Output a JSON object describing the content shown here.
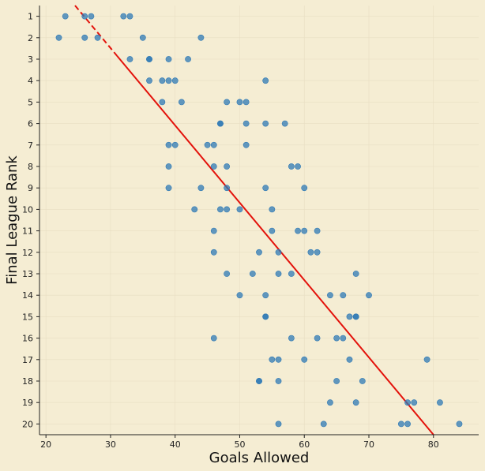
{
  "chart_data": {
    "type": "scatter",
    "title": "",
    "xlabel": "Goals Allowed",
    "ylabel": "Final League Rank",
    "xlim": [
      19,
      87
    ],
    "ylim": [
      20.5,
      0.5
    ],
    "y_inverted": true,
    "xticks": [
      20,
      30,
      40,
      50,
      60,
      70,
      80
    ],
    "yticks": [
      1,
      2,
      3,
      4,
      5,
      6,
      7,
      8,
      9,
      10,
      11,
      12,
      13,
      14,
      15,
      16,
      17,
      18,
      19,
      20
    ],
    "grid": true,
    "colors": {
      "background": "#f5edd3",
      "point": "#2f79b5",
      "trend": "#e3120b",
      "grid": "#e8dec3"
    },
    "series": [
      {
        "kind": "points",
        "x": [
          23,
          26,
          27,
          32,
          33,
          22,
          26,
          28,
          35,
          44,
          33,
          36,
          36,
          39,
          42,
          36,
          38,
          39,
          40,
          54,
          38,
          41,
          48,
          50,
          51,
          47,
          47,
          51,
          54,
          57,
          39,
          40,
          45,
          46,
          51,
          39,
          46,
          48,
          58,
          59,
          39,
          44,
          48,
          54,
          60,
          43,
          47,
          48,
          50,
          55,
          46,
          55,
          59,
          60,
          62,
          46,
          53,
          56,
          61,
          62,
          48,
          52,
          56,
          58,
          68,
          50,
          54,
          64,
          66,
          70,
          54,
          54,
          67,
          68,
          68,
          46,
          58,
          62,
          65,
          66,
          55,
          56,
          60,
          67,
          79,
          53,
          53,
          56,
          65,
          69,
          64,
          68,
          76,
          77,
          81,
          56,
          63,
          75,
          76,
          84
        ],
        "y": [
          1,
          1,
          1,
          1,
          1,
          2,
          2,
          2,
          2,
          2,
          3,
          3,
          3,
          3,
          3,
          4,
          4,
          4,
          4,
          4,
          5,
          5,
          5,
          5,
          5,
          6,
          6,
          6,
          6,
          6,
          7,
          7,
          7,
          7,
          7,
          8,
          8,
          8,
          8,
          8,
          9,
          9,
          9,
          9,
          9,
          10,
          10,
          10,
          10,
          10,
          11,
          11,
          11,
          11,
          11,
          12,
          12,
          12,
          12,
          12,
          13,
          13,
          13,
          13,
          13,
          14,
          14,
          14,
          14,
          14,
          15,
          15,
          15,
          15,
          15,
          16,
          16,
          16,
          16,
          16,
          17,
          17,
          17,
          17,
          17,
          18,
          18,
          18,
          18,
          18,
          19,
          19,
          19,
          19,
          19,
          20,
          20,
          20,
          20,
          20
        ]
      },
      {
        "kind": "trendline",
        "x": [
          24.5,
          80
        ],
        "y": [
          0.5,
          20.5
        ],
        "dashed_until_x": 31
      }
    ]
  }
}
